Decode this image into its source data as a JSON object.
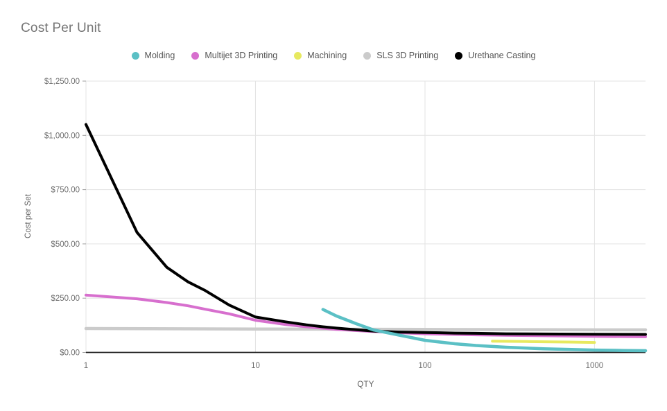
{
  "title": "Cost Per Unit",
  "axes": {
    "x_title": "QTY",
    "y_title": "Cost per Set",
    "x_ticks": [
      {
        "label": "1",
        "value": 1
      },
      {
        "label": "10",
        "value": 10
      },
      {
        "label": "100",
        "value": 100
      },
      {
        "label": "1000",
        "value": 1000
      }
    ],
    "y_ticks": [
      {
        "label": "$0.00",
        "value": 0
      },
      {
        "label": "$250.00",
        "value": 250
      },
      {
        "label": "$500.00",
        "value": 500
      },
      {
        "label": "$750.00",
        "value": 750
      },
      {
        "label": "$1,000.00",
        "value": 1000
      },
      {
        "label": "$1,250.00",
        "value": 1250
      }
    ]
  },
  "legend": [
    {
      "label": "Molding",
      "color": "#5bc0c5"
    },
    {
      "label": "Multijet 3D Printing",
      "color": "#d76fce"
    },
    {
      "label": "Machining",
      "color": "#e7e95f"
    },
    {
      "label": "SLS 3D Printing",
      "color": "#cbcbcb"
    },
    {
      "label": "Urethane Casting",
      "color": "#000000"
    }
  ],
  "colors": {
    "axis_line": "#212121",
    "gridline": "#e3e3e3",
    "tick_mark": "#9e9e9e",
    "tick_label": "#6e6e6e"
  },
  "chart_data": {
    "type": "line",
    "title": "Cost Per Unit",
    "xlabel": "QTY",
    "ylabel": "Cost per Set",
    "x_scale": "log",
    "x_range": [
      1,
      2000
    ],
    "y_range": [
      0,
      1250
    ],
    "grid": true,
    "legend_position": "top",
    "series": [
      {
        "name": "Molding",
        "color": "#5bc0c5",
        "stroke_width": 4.5,
        "points": [
          [
            25,
            198
          ],
          [
            30,
            168
          ],
          [
            40,
            130
          ],
          [
            50,
            103
          ],
          [
            70,
            80
          ],
          [
            100,
            56
          ],
          [
            150,
            40
          ],
          [
            200,
            32
          ],
          [
            300,
            24
          ],
          [
            500,
            17
          ],
          [
            700,
            14
          ],
          [
            1000,
            11
          ],
          [
            1500,
            9
          ],
          [
            2000,
            8
          ]
        ]
      },
      {
        "name": "Multijet 3D Printing",
        "color": "#d76fce",
        "stroke_width": 4,
        "points": [
          [
            1,
            264
          ],
          [
            2,
            247
          ],
          [
            3,
            230
          ],
          [
            4,
            215
          ],
          [
            5,
            200
          ],
          [
            7,
            178
          ],
          [
            10,
            148
          ],
          [
            15,
            129
          ],
          [
            20,
            118
          ],
          [
            30,
            106
          ],
          [
            50,
            96
          ],
          [
            70,
            91
          ],
          [
            100,
            86
          ],
          [
            150,
            83
          ],
          [
            200,
            81
          ],
          [
            300,
            79
          ],
          [
            500,
            77
          ],
          [
            1000,
            74
          ],
          [
            2000,
            72
          ]
        ]
      },
      {
        "name": "Machining",
        "color": "#e7e95f",
        "stroke_width": 4,
        "points": [
          [
            250,
            52
          ],
          [
            400,
            50
          ],
          [
            700,
            48
          ],
          [
            1000,
            46
          ]
        ]
      },
      {
        "name": "SLS 3D Printing",
        "color": "#cbcbcb",
        "stroke_width": 4.5,
        "points": [
          [
            1,
            110
          ],
          [
            10,
            108
          ],
          [
            100,
            106
          ],
          [
            1000,
            104
          ],
          [
            2000,
            104
          ]
        ]
      },
      {
        "name": "Urethane Casting",
        "color": "#000000",
        "stroke_width": 4,
        "points": [
          [
            1,
            1050
          ],
          [
            2,
            553
          ],
          [
            3,
            392
          ],
          [
            4,
            325
          ],
          [
            5,
            287
          ],
          [
            7,
            218
          ],
          [
            10,
            163
          ],
          [
            15,
            141
          ],
          [
            20,
            127
          ],
          [
            25,
            118
          ],
          [
            30,
            112
          ],
          [
            40,
            104
          ],
          [
            50,
            98
          ],
          [
            70,
            94
          ],
          [
            100,
            92
          ],
          [
            150,
            89
          ],
          [
            200,
            88
          ],
          [
            300,
            86
          ],
          [
            500,
            85
          ],
          [
            1000,
            84
          ],
          [
            2000,
            83
          ]
        ]
      }
    ]
  }
}
